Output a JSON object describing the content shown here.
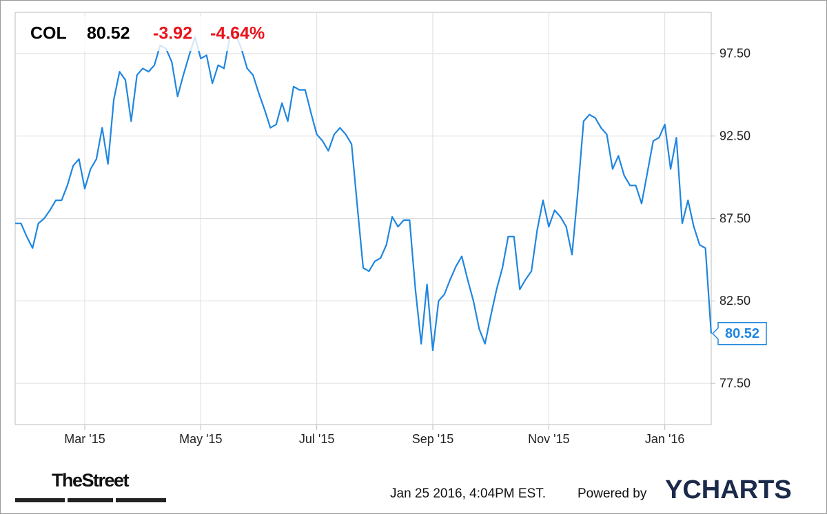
{
  "header": {
    "ticker": "COL",
    "change": -3.92,
    "change_percent": "-4.64%"
  },
  "chart_data": {
    "type": "line",
    "categories": [
      null,
      null,
      null,
      null,
      null,
      null,
      null,
      null,
      null,
      null,
      null,
      null,
      "Mar '15",
      null,
      null,
      null,
      null,
      null,
      null,
      null,
      null,
      null,
      null,
      null,
      null,
      null,
      null,
      null,
      null,
      null,
      null,
      null,
      "May '15",
      null,
      null,
      null,
      null,
      null,
      null,
      null,
      null,
      null,
      null,
      null,
      null,
      null,
      null,
      null,
      null,
      null,
      null,
      null,
      "Jul '15",
      null,
      null,
      null,
      null,
      null,
      null,
      null,
      null,
      null,
      null,
      null,
      null,
      null,
      null,
      null,
      null,
      null,
      null,
      null,
      "Sep '15",
      null,
      null,
      null,
      null,
      null,
      null,
      null,
      null,
      null,
      null,
      null,
      null,
      null,
      null,
      null,
      null,
      null,
      null,
      null,
      "Nov '15",
      null,
      null,
      null,
      null,
      null,
      null,
      null,
      null,
      null,
      null,
      null,
      null,
      null,
      null,
      null,
      null,
      null,
      null,
      null,
      "Jan '16",
      null,
      null,
      null,
      null,
      null,
      null,
      null,
      null
    ],
    "series": [
      {
        "name": "COL",
        "color": "#1f86e0",
        "values": [
          87.2,
          87.2,
          86.4,
          85.7,
          87.2,
          87.5,
          88.0,
          88.6,
          88.6,
          89.5,
          90.7,
          91.1,
          89.3,
          90.5,
          91.1,
          93.0,
          90.8,
          94.7,
          96.4,
          95.9,
          93.4,
          96.2,
          96.6,
          96.4,
          96.8,
          98.0,
          97.8,
          97.0,
          94.9,
          96.2,
          97.4,
          98.5,
          97.2,
          97.4,
          95.7,
          96.8,
          96.6,
          98.5,
          98.7,
          97.8,
          96.6,
          96.2,
          95.1,
          94.1,
          93.0,
          93.2,
          94.5,
          93.4,
          95.5,
          95.3,
          95.3,
          93.9,
          92.6,
          92.2,
          91.6,
          92.6,
          93.0,
          92.6,
          92.0,
          88.2,
          84.5,
          84.3,
          84.9,
          85.1,
          85.9,
          87.6,
          87.0,
          87.4,
          87.4,
          83.2,
          79.9,
          83.5,
          79.5,
          82.5,
          82.9,
          83.8,
          84.6,
          85.2,
          83.8,
          82.5,
          80.8,
          79.9,
          81.6,
          83.2,
          84.5,
          86.4,
          86.4,
          83.2,
          83.8,
          84.3,
          86.8,
          88.6,
          87.0,
          88.0,
          87.6,
          87.0,
          85.3,
          89.1,
          93.4,
          93.8,
          93.6,
          93.0,
          92.6,
          90.5,
          91.3,
          90.1,
          89.5,
          89.5,
          88.4,
          90.3,
          92.2,
          92.4,
          93.2,
          90.5,
          92.4,
          87.2,
          88.6,
          87.0,
          85.9,
          85.7,
          80.52
        ]
      }
    ],
    "ylim": [
      75,
      100
    ],
    "yticks": [
      {
        "value": 77.5,
        "label": "77.50"
      },
      {
        "value": 82.5,
        "label": "82.50"
      },
      {
        "value": 87.5,
        "label": "87.50"
      },
      {
        "value": 92.5,
        "label": "92.50"
      },
      {
        "value": 97.5,
        "label": "97.50"
      }
    ],
    "grid": true
  },
  "footer": {
    "timestamp": "Jan 25 2016, 4:04PM EST.",
    "powered_by": "Powered by",
    "brand": "YCHARTS",
    "publisher": "TheStreet"
  }
}
